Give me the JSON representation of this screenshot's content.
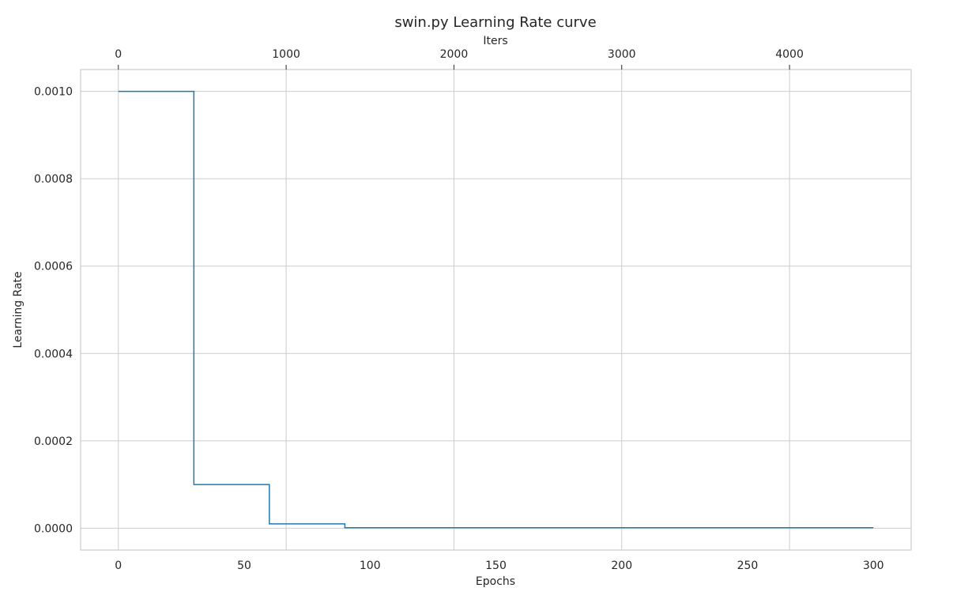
{
  "chart_data": {
    "type": "line",
    "title": "swin.py Learning Rate curve",
    "xlabel": "Epochs",
    "ylabel": "Learning Rate",
    "secondary_xlabel": "Iters",
    "xlim": [
      -15,
      315
    ],
    "ylim": [
      -5e-05,
      0.00105
    ],
    "x_ticks": [
      0,
      50,
      100,
      150,
      200,
      250,
      300
    ],
    "x_tick_labels": [
      "0",
      "50",
      "100",
      "150",
      "200",
      "250",
      "300"
    ],
    "y_ticks": [
      0.0,
      0.0002,
      0.0004,
      0.0006,
      0.0008,
      0.001
    ],
    "y_tick_labels": [
      "0.0000",
      "0.0002",
      "0.0004",
      "0.0006",
      "0.0008",
      "0.0010"
    ],
    "secondary_x_ticks": [
      0,
      1000,
      2000,
      3000,
      4000
    ],
    "secondary_x_tick_labels": [
      "0",
      "1000",
      "2000",
      "3000",
      "4000"
    ],
    "secondary_x_per_epoch": 15,
    "grid": true,
    "series": [
      {
        "color": "#1f77b4",
        "step": "post",
        "x": [
          0,
          30,
          60,
          90,
          300
        ],
        "y": [
          0.001,
          0.0001,
          1e-05,
          1e-06,
          1e-06
        ]
      }
    ]
  }
}
